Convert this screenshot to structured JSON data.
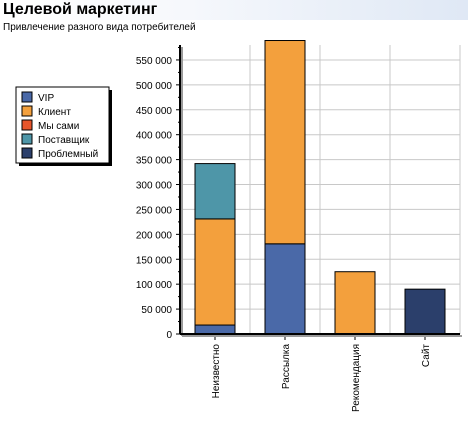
{
  "header": {
    "title": "Целевой маркетинг",
    "subtitle": "Привлечение разного вида потребителей"
  },
  "chart_data": {
    "type": "bar",
    "stacked": true,
    "categories": [
      "Неизвестно",
      "Рассылка",
      "Рекомендация",
      "Сайт"
    ],
    "series": [
      {
        "name": "VIP",
        "color": "#4a69a8",
        "values": [
          18000,
          181000,
          0,
          0
        ]
      },
      {
        "name": "Клиент",
        "color": "#f3a03d",
        "values": [
          213000,
          408000,
          125000,
          0
        ]
      },
      {
        "name": "Мы сами",
        "color": "#e8552b",
        "values": [
          0,
          0,
          0,
          0
        ]
      },
      {
        "name": "Поставщик",
        "color": "#4e96a8",
        "values": [
          111000,
          0,
          0,
          0
        ]
      },
      {
        "name": "Проблемный",
        "color": "#2b3f6b",
        "values": [
          0,
          0,
          0,
          90000
        ]
      }
    ],
    "yticks": [
      "0",
      "50 000",
      "100 000",
      "150 000",
      "200 000",
      "250 000",
      "300 000",
      "350 000",
      "400 000",
      "450 000",
      "500 000",
      "550 000"
    ],
    "ylim": [
      0,
      580000
    ],
    "ytick_step": 50000,
    "grid": true,
    "legend_position": "left"
  }
}
